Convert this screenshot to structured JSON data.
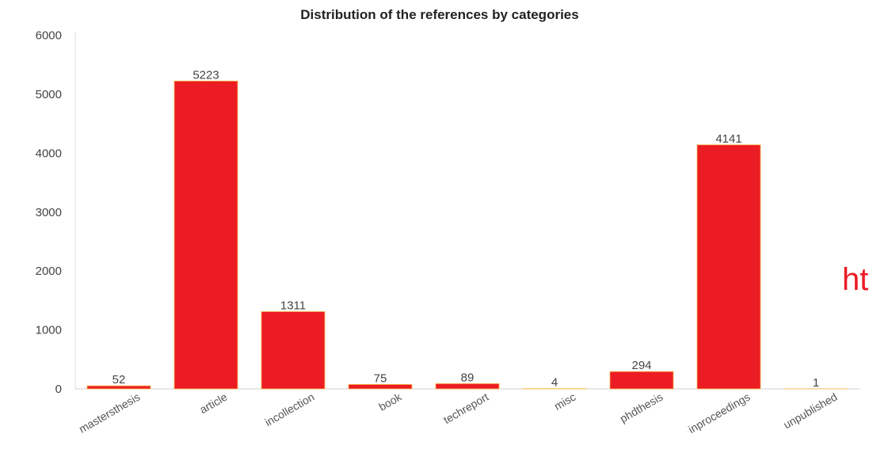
{
  "chart_data": {
    "type": "bar",
    "title": "Distribution of the references by categories",
    "xlabel": "",
    "ylabel": "",
    "categories": [
      "mastersthesis",
      "article",
      "incollection",
      "book",
      "techreport",
      "misc",
      "phdthesis",
      "inproceedings",
      "unpublished"
    ],
    "values": [
      52,
      5223,
      1311,
      75,
      89,
      4,
      294,
      4141,
      1
    ],
    "ylim": [
      0,
      6000
    ],
    "yticks": [
      "0",
      "1000",
      "2000",
      "3000",
      "4000",
      "5000",
      "6000"
    ],
    "grid": false,
    "legend": "none",
    "bar_color": "#ec1c24",
    "bar_edge_color": "#f7b84b"
  },
  "overflow_text": "ht"
}
